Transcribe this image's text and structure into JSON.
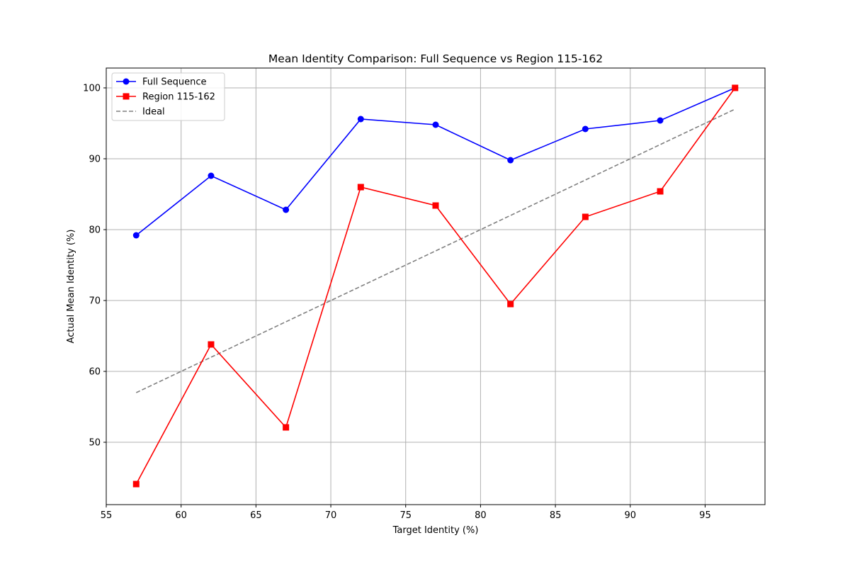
{
  "chart_data": {
    "type": "line",
    "title": "Mean Identity Comparison: Full Sequence vs Region 115-162",
    "xlabel": "Target Identity (%)",
    "ylabel": "Actual Mean Identity (%)",
    "xlim": [
      55,
      99
    ],
    "ylim": [
      41.2,
      102.8
    ],
    "xticks": [
      55,
      60,
      65,
      70,
      75,
      80,
      85,
      90,
      95
    ],
    "yticks": [
      50,
      60,
      70,
      80,
      90,
      100
    ],
    "grid": true,
    "legend_position": "top-left",
    "series": [
      {
        "name": "Full Sequence",
        "color": "#0000ff",
        "marker": "circle",
        "line_style": "solid",
        "x": [
          57,
          62,
          67,
          72,
          77,
          82,
          87,
          92,
          97
        ],
        "y": [
          79.2,
          87.6,
          82.8,
          95.6,
          94.8,
          89.8,
          94.2,
          95.4,
          100.0
        ]
      },
      {
        "name": "Region 115-162",
        "color": "#ff0000",
        "marker": "square",
        "line_style": "solid",
        "x": [
          57,
          62,
          67,
          72,
          77,
          82,
          87,
          92,
          97
        ],
        "y": [
          44.1,
          63.8,
          52.1,
          86.0,
          83.4,
          69.5,
          81.8,
          85.4,
          100.0
        ]
      },
      {
        "name": "Ideal",
        "color": "#808080",
        "marker": "none",
        "line_style": "dashed",
        "x": [
          57,
          97
        ],
        "y": [
          57,
          97
        ]
      }
    ]
  }
}
